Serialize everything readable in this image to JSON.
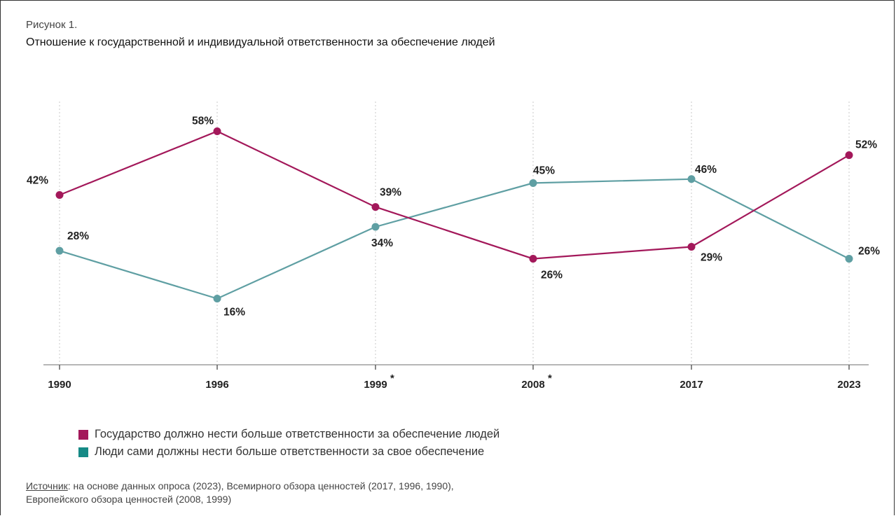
{
  "figure": {
    "label": "Рисунок 1.",
    "title": "Отношение к государственной и индивидуальной ответственности за обеспечение людей"
  },
  "chart_data": {
    "type": "line",
    "x": [
      "1990",
      "1996",
      "1999",
      "2008",
      "2017",
      "2023"
    ],
    "x_marks": [
      "",
      "",
      "*",
      "*",
      "",
      ""
    ],
    "ylim": [
      0,
      70
    ],
    "grid": "vertical dotted",
    "legend_position": "bottom-left",
    "series": [
      {
        "name": "Государство должно нести больше ответственности за обеспечение людей",
        "color": "#a3185a",
        "values": [
          42,
          58,
          39,
          26,
          29,
          52
        ],
        "labels": [
          "42%",
          "58%",
          "39%",
          "26%",
          "29%",
          "52%"
        ]
      },
      {
        "name": "Люди сами должны нести больше ответственности за свое обеспечение",
        "color": "#5f9fa3",
        "values": [
          28,
          16,
          34,
          45,
          46,
          26
        ],
        "labels": [
          "28%",
          "16%",
          "34%",
          "45%",
          "46%",
          "26%"
        ]
      }
    ]
  },
  "legend": {
    "items": [
      {
        "label": "Государство должно нести больше ответственности за обеспечение людей",
        "color": "#a3185a"
      },
      {
        "label": "Люди сами должны нести больше ответственности за свое обеспечение",
        "color": "#168a86"
      }
    ]
  },
  "source": {
    "key": "Источник",
    "line1": ": на основе данных опроса (2023), Всемирного обзора ценностей (2017, 1996, 1990),",
    "line2": "Европейского обзора ценностей (2008, 1999)"
  }
}
